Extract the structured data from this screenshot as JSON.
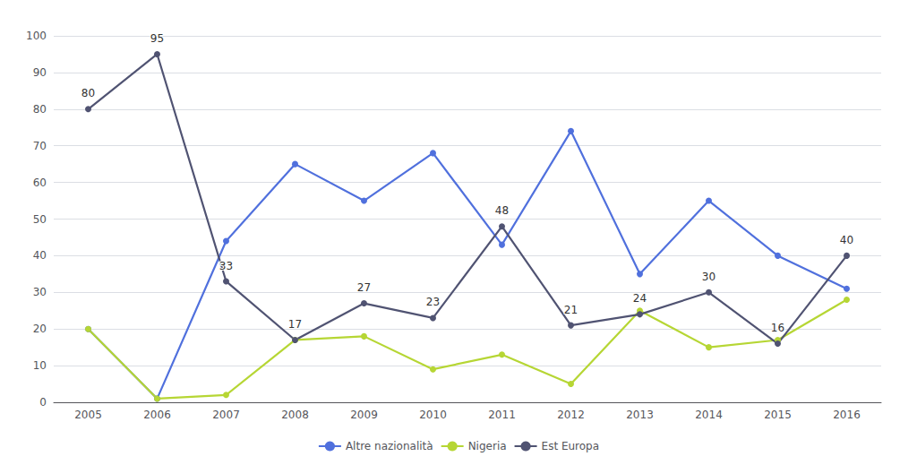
{
  "chart_data": {
    "type": "line",
    "categories": [
      "2005",
      "2006",
      "2007",
      "2008",
      "2009",
      "2010",
      "2011",
      "2012",
      "2013",
      "2014",
      "2015",
      "2016"
    ],
    "series": [
      {
        "name": "Altre nazionalità",
        "values": [
          20,
          1,
          44,
          65,
          55,
          68,
          43,
          74,
          35,
          55,
          40,
          31
        ]
      },
      {
        "name": "Nigeria",
        "values": [
          20,
          1,
          2,
          17,
          18,
          9,
          13,
          5,
          25,
          15,
          17,
          28
        ]
      },
      {
        "name": "Est Europa",
        "values": [
          80,
          95,
          33,
          17,
          27,
          23,
          48,
          21,
          24,
          30,
          16,
          40
        ],
        "data_labels": true
      }
    ],
    "ylim": [
      0,
      100
    ],
    "yticks": [
      0,
      10,
      20,
      30,
      40,
      50,
      60,
      70,
      80,
      90,
      100
    ],
    "grid": true,
    "marker": "circle",
    "legend": "bottom"
  }
}
